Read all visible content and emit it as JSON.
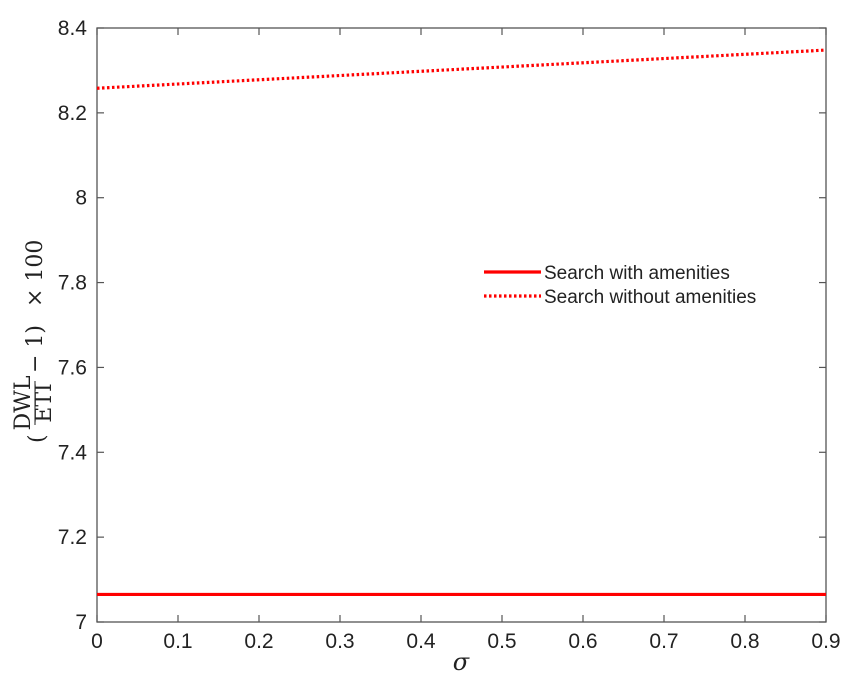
{
  "chart_data": {
    "type": "line",
    "title": "",
    "xlabel": "σ",
    "ylabel": {
      "num": "DWL",
      "den": "ETI",
      "minus_one": "− 1)",
      "times_100": "× 100",
      "open_paren": "("
    },
    "xlim": [
      0,
      0.9
    ],
    "ylim": [
      7,
      8.4
    ],
    "xticks": [
      0,
      0.1,
      0.2,
      0.3,
      0.4,
      0.5,
      0.6,
      0.7,
      0.8,
      0.9
    ],
    "xtick_labels": [
      "0",
      "0.1",
      "0.2",
      "0.3",
      "0.4",
      "0.5",
      "0.6",
      "0.7",
      "0.8",
      "0.9"
    ],
    "yticks": [
      7,
      7.2,
      7.4,
      7.6,
      7.8,
      8,
      8.2,
      8.4
    ],
    "ytick_labels": [
      "7",
      "7.2",
      "7.4",
      "7.6",
      "7.8",
      "8",
      "8.2",
      "8.4"
    ],
    "grid": false,
    "legend_position": "center-right",
    "series": [
      {
        "name": "Search with amenities",
        "style": "solid",
        "color": "#ff0000",
        "x": [
          0,
          0.9
        ],
        "y": [
          7.065,
          7.065
        ]
      },
      {
        "name": "Search without amenities",
        "style": "dotted",
        "color": "#ff0000",
        "x": [
          0,
          0.9
        ],
        "y": [
          8.258,
          8.348
        ]
      }
    ]
  }
}
